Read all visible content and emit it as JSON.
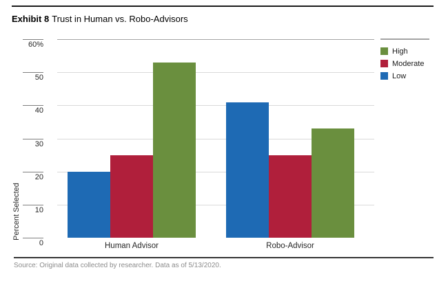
{
  "title": {
    "exhibit": "Exhibit 8",
    "text": "Trust in Human vs. Robo-Advisors"
  },
  "chart_data": {
    "type": "bar",
    "categories": [
      "Human Advisor",
      "Robo-Advisor"
    ],
    "series": [
      {
        "name": "Low",
        "color": "#1e6ab4",
        "values": [
          20,
          41
        ]
      },
      {
        "name": "Moderate",
        "color": "#b01f3b",
        "values": [
          25,
          25
        ]
      },
      {
        "name": "High",
        "color": "#6a8f3e",
        "values": [
          53,
          33
        ]
      }
    ],
    "legend": {
      "position": "top-right",
      "items": [
        "High",
        "Moderate",
        "Low"
      ]
    },
    "ylabel": "Percent Selected",
    "xlabel": "",
    "ylim": [
      0,
      60
    ],
    "yticks": [
      {
        "value": 60,
        "label": "60%"
      },
      {
        "value": 50,
        "label": "50"
      },
      {
        "value": 40,
        "label": "40"
      },
      {
        "value": 30,
        "label": "30"
      },
      {
        "value": 20,
        "label": "20"
      },
      {
        "value": 10,
        "label": "10"
      },
      {
        "value": 0,
        "label": "0"
      }
    ],
    "grid": true
  },
  "source": "Source: Original data collected by researcher. Data as of 5/13/2020."
}
